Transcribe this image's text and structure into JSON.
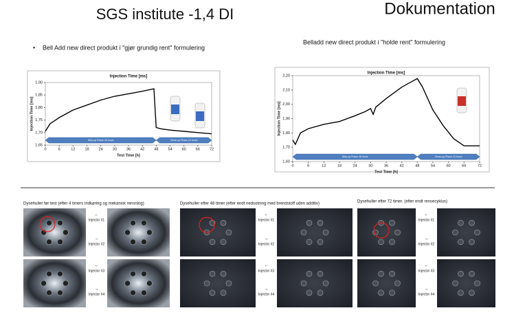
{
  "header": {
    "title": "SGS institute -1,4 DI",
    "section": "Dokumentation"
  },
  "bullet": "Bell Add new direct produkt i \"gjør grundig rent\" formulering",
  "subtitle": "Belladd new direct produkt i \"holde rent\" formulering",
  "chart_data": [
    {
      "type": "line",
      "title": "Injection Time [ms]",
      "ylabel": "Injection Time [ms]",
      "xlabel": "Test Time [h]",
      "x": [
        0,
        2,
        6,
        12,
        18,
        24,
        30,
        36,
        42,
        47,
        48,
        50,
        54,
        60,
        66,
        72
      ],
      "values": [
        1.705,
        1.735,
        1.76,
        1.79,
        1.81,
        1.83,
        1.845,
        1.855,
        1.865,
        1.875,
        1.72,
        1.715,
        1.71,
        1.705,
        1.7,
        1.695
      ],
      "color": "#000000",
      "xlim": [
        0,
        72
      ],
      "xticks": [
        0,
        6,
        12,
        18,
        24,
        30,
        36,
        42,
        48,
        54,
        60,
        66,
        72
      ],
      "ylim": [
        1.65,
        1.9
      ],
      "yticks": [
        {
          "value": 1.65,
          "label": "1,65"
        },
        {
          "value": 1.7,
          "label": "1,70"
        },
        {
          "value": 1.75,
          "label": "1,75"
        },
        {
          "value": 1.8,
          "label": "1,80"
        },
        {
          "value": 1.85,
          "label": "1,85"
        },
        {
          "value": 1.9,
          "label": "1,90"
        }
      ],
      "annotations": [
        "Dirty-up Phase 48 hours",
        "Clean-up Phase 24 hours"
      ],
      "grid": false
    },
    {
      "type": "line",
      "title": "Injection Time [ms]",
      "ylabel": "Injection Time [ms]",
      "xlabel": "Test Time [h]",
      "x": [
        0,
        1,
        3,
        6,
        12,
        18,
        24,
        28,
        30,
        31,
        32,
        36,
        42,
        46,
        48,
        50,
        54,
        58,
        62,
        66,
        72
      ],
      "values": [
        1.75,
        1.72,
        1.8,
        1.83,
        1.86,
        1.88,
        1.92,
        1.95,
        1.97,
        1.93,
        1.98,
        2.04,
        2.12,
        2.16,
        2.18,
        2.12,
        1.96,
        1.85,
        1.76,
        1.71,
        1.71
      ],
      "color": "#000000",
      "xlim": [
        0,
        72
      ],
      "xticks": [
        0,
        6,
        12,
        18,
        24,
        30,
        36,
        42,
        48,
        54,
        60,
        66,
        72
      ],
      "ylim": [
        1.6,
        2.2
      ],
      "yticks": [
        {
          "value": 1.6,
          "label": "1,60"
        },
        {
          "value": 1.7,
          "label": "1,70"
        },
        {
          "value": 1.8,
          "label": "1,80"
        },
        {
          "value": 1.9,
          "label": "1,90"
        },
        {
          "value": 2.0,
          "label": "2,00"
        },
        {
          "value": 2.1,
          "label": "2,10"
        },
        {
          "value": 2.2,
          "label": "2,20"
        }
      ],
      "annotations": [
        "Dirty-up Phase 48 hours",
        "Clean-up Phase 24 hours"
      ],
      "grid": false
    }
  ],
  "panels": [
    {
      "caption": "Dysehuller før test (efter 4 timers indkøring og mekanisk rensning)",
      "arrows": [
        "←",
        "→",
        "←",
        "→"
      ],
      "injectors": [
        "Injector #1",
        "Injector #2",
        "Injector #3",
        "Injector #4"
      ]
    },
    {
      "caption": "Dysehuller efter 48 timer (efter endt nedsotning med brendstoff uden additiv)",
      "arrows": [
        "←",
        "→",
        "←",
        "→"
      ],
      "injectors": [
        "Injector #1",
        "Injector #2",
        "Injector #3",
        "Injector #4"
      ]
    },
    {
      "caption": "Dysehuller efter 72 timer. (efter endt rensecyklus)",
      "arrows": [
        "←",
        "→",
        "←",
        "→"
      ],
      "injectors": [
        "Injector #1",
        "Injector #2",
        "Injector #3",
        "Injector #4"
      ]
    }
  ]
}
